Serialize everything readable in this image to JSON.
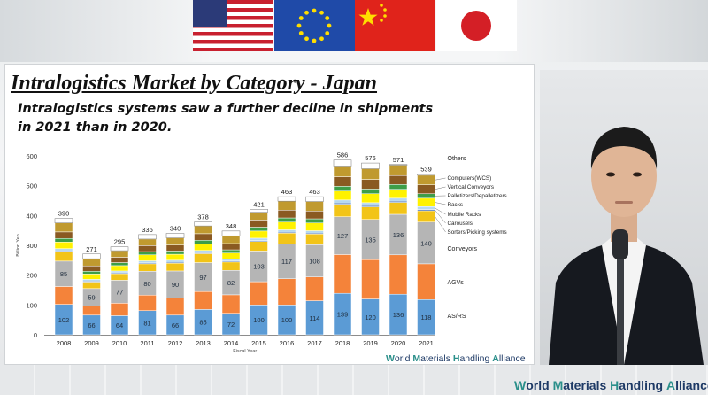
{
  "slide": {
    "title": "Intralogistics Market by Category - Japan",
    "subtitle": "Intralogistics systems saw a further decline in shipments in 2021 than in 2020.",
    "logo_parts": [
      "W",
      "orld ",
      "M",
      "aterials ",
      "H",
      "andling ",
      "A",
      "lliance"
    ]
  },
  "footer": {
    "logo_parts": [
      "W",
      "orld ",
      "M",
      "aterials ",
      "H",
      "andling ",
      "A",
      "lliance"
    ]
  },
  "flags": [
    "us-flag",
    "eu-flag",
    "china-flag",
    "japan-flag"
  ],
  "chart_data": {
    "type": "bar",
    "stacked": true,
    "categories": [
      "2008",
      "2009",
      "2010",
      "2011",
      "2012",
      "2013",
      "2014",
      "2015",
      "2016",
      "2017",
      "2018",
      "2019",
      "2020",
      "2021"
    ],
    "totals": [
      390,
      271,
      295,
      336,
      340,
      378,
      348,
      421,
      463,
      463,
      586,
      576,
      571,
      539
    ],
    "ylabel": "Billion Yen",
    "xlabel": "Fiscal Year",
    "ylim": [
      0,
      600
    ],
    "yticks": [
      0,
      100,
      200,
      300,
      400,
      500,
      600
    ],
    "grid": false,
    "legend_position": "right (labels beside 2021 bar)",
    "series": [
      {
        "name": "AS/RS",
        "color": "#5b9bd5",
        "values": [
          102,
          66,
          64,
          81,
          66,
          85,
          72,
          100,
          100,
          114,
          139,
          120,
          136,
          118
        ],
        "labeled": true
      },
      {
        "name": "AGVs",
        "color": "#f4833a",
        "values": [
          60,
          30,
          42,
          52,
          58,
          60,
          62,
          78,
          88,
          80,
          130,
          132,
          132,
          120
        ],
        "labeled": false
      },
      {
        "name": "Conveyors",
        "color": "#b5b5b5",
        "values": [
          85,
          59,
          77,
          80,
          90,
          97,
          82,
          103,
          117,
          108,
          127,
          135,
          136,
          140
        ],
        "labeled": true
      },
      {
        "name": "Sorters/Picking systems",
        "color": "#f2c418",
        "values": [
          30,
          22,
          22,
          25,
          26,
          30,
          28,
          32,
          36,
          36,
          42,
          42,
          40,
          38
        ],
        "labeled": false
      },
      {
        "name": "Carousels",
        "color": "#2e62b0",
        "values": [
          4,
          3,
          3,
          3,
          3,
          3,
          3,
          3,
          3,
          3,
          4,
          4,
          4,
          4
        ],
        "labeled": false
      },
      {
        "name": "Mobile Racks",
        "color": "#b5d8f0",
        "values": [
          8,
          6,
          6,
          7,
          7,
          8,
          7,
          8,
          8,
          8,
          10,
          10,
          10,
          10
        ],
        "labeled": false
      },
      {
        "name": "Racks",
        "color": "#fff200",
        "values": [
          22,
          18,
          18,
          20,
          20,
          22,
          20,
          24,
          26,
          26,
          30,
          30,
          30,
          28
        ],
        "labeled": false
      },
      {
        "name": "Palletizers/Depalletizers",
        "color": "#3d9e48",
        "values": [
          12,
          9,
          10,
          11,
          11,
          12,
          11,
          13,
          14,
          14,
          16,
          16,
          16,
          15
        ],
        "labeled": false
      },
      {
        "name": "Vertical Conveyors",
        "color": "#8a5a22",
        "values": [
          22,
          18,
          18,
          20,
          20,
          22,
          21,
          24,
          26,
          26,
          32,
          32,
          30,
          30
        ],
        "labeled": false
      },
      {
        "name": "Computers(WCS)",
        "color": "#c09a2f",
        "values": [
          30,
          24,
          22,
          22,
          24,
          26,
          26,
          26,
          30,
          32,
          36,
          36,
          35,
          32
        ],
        "labeled": false
      },
      {
        "name": "Others",
        "color": "#ffffff",
        "values": [
          15,
          16,
          13,
          15,
          15,
          13,
          16,
          10,
          15,
          16,
          20,
          19,
          2,
          4
        ],
        "labeled": false
      }
    ]
  }
}
